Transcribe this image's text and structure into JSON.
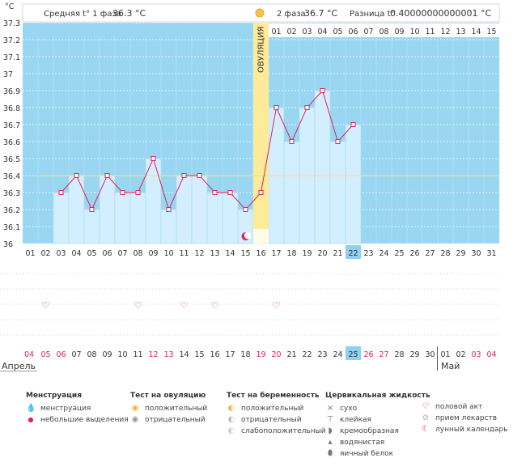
{
  "stats": {
    "phase1_label": "Средняя t° 1 фаза",
    "phase1_value": "36.3 °C",
    "phase2_label": "2 фаза",
    "phase2_value": "36.7 °C",
    "diff_label": "Разница t°",
    "diff_value": "0.40000000000001 °C"
  },
  "months": {
    "april": "Апрель",
    "may": "Май"
  },
  "ovulation_label": "ОВУЛЯЦИЯ",
  "chart_data": {
    "type": "line",
    "title": "",
    "ylabel": "°C",
    "ylim": [
      36,
      37.3
    ],
    "yticks": [
      "37.3",
      "37.2",
      "37.1",
      "37",
      "36.9",
      "36.8",
      "36.7",
      "36.6",
      "36.5",
      "36.4",
      "36.3",
      "36.2",
      "36.1",
      "36"
    ],
    "cycle_days": [
      "01",
      "02",
      "03",
      "04",
      "05",
      "06",
      "07",
      "08",
      "09",
      "10",
      "11",
      "12",
      "13",
      "14",
      "15",
      "16",
      "17",
      "18",
      "19",
      "20",
      "21",
      "22",
      "23",
      "24",
      "25",
      "26",
      "27",
      "28",
      "29",
      "30",
      "31"
    ],
    "phase2_days": [
      "01",
      "02",
      "03",
      "04",
      "05",
      "06",
      "07",
      "08",
      "09",
      "10",
      "11",
      "12",
      "13",
      "14",
      "15"
    ],
    "temperatures": [
      null,
      null,
      36.3,
      36.4,
      36.2,
      36.4,
      36.3,
      36.3,
      36.5,
      36.2,
      36.4,
      36.4,
      36.3,
      36.3,
      36.2,
      36.3,
      36.8,
      36.6,
      36.8,
      36.9,
      36.6,
      36.7,
      null,
      null,
      null,
      null,
      null,
      null,
      null,
      null,
      null
    ],
    "coverline": 36.4,
    "ovulation_day": "16",
    "current_day": "22",
    "current_date": "25",
    "dates": [
      "04",
      "05",
      "06",
      "07",
      "08",
      "09",
      "10",
      "11",
      "12",
      "13",
      "14",
      "15",
      "16",
      "17",
      "18",
      "19",
      "20",
      "21",
      "22",
      "23",
      "24",
      "25",
      "26",
      "27",
      "28",
      "29",
      "30",
      "01",
      "02",
      "03",
      "04"
    ],
    "red_dates": [
      "05",
      "06",
      "12",
      "13",
      "19",
      "20",
      "26",
      "27",
      "03",
      "04"
    ],
    "sex_days": [
      "05",
      "11",
      "14",
      "16",
      "20"
    ],
    "moon_day": "15"
  },
  "legend": {
    "menstruation": {
      "title": "Менструация",
      "items": [
        "менструация",
        "небольшие выделения"
      ]
    },
    "ovulation_test": {
      "title": "Тест на овуляцию",
      "items": [
        "положительный",
        "отрицательный"
      ]
    },
    "pregnancy_test": {
      "title": "Тест на беременность",
      "items": [
        "положительный",
        "отрицательный",
        "слабоположительный"
      ]
    },
    "cervical": {
      "title": "Цервикальная жидкость",
      "items": [
        "сухо",
        "клейкая",
        "кремообразная",
        "водянистая",
        "яичный белок"
      ]
    },
    "other": {
      "items": [
        "половой акт",
        "прием лекарств",
        "лунный календарь"
      ]
    }
  }
}
